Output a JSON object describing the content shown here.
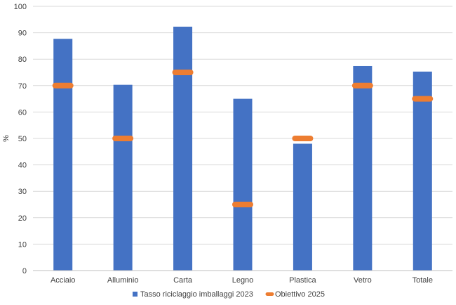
{
  "chart_data": {
    "type": "bar",
    "title": "",
    "xlabel": "",
    "ylabel": "%",
    "ylim": [
      0,
      100
    ],
    "yticks": [
      0,
      10,
      20,
      30,
      40,
      50,
      60,
      70,
      80,
      90,
      100
    ],
    "grid": "horizontal",
    "legend_position": "bottom",
    "categories": [
      "Acciaio",
      "Alluminio",
      "Carta",
      "Legno",
      "Plastica",
      "Vetro",
      "Totale"
    ],
    "series": [
      {
        "name": "Tasso riciclaggio imballaggi 2023",
        "type": "bar",
        "color": "#4472C4",
        "values": [
          87.7,
          70.3,
          92.3,
          65.0,
          48.0,
          77.4,
          75.3
        ]
      },
      {
        "name": "Obiettivo 2025",
        "type": "marker",
        "color": "#ED7D31",
        "values": [
          70,
          50,
          75,
          25,
          50,
          70,
          65
        ]
      }
    ]
  }
}
